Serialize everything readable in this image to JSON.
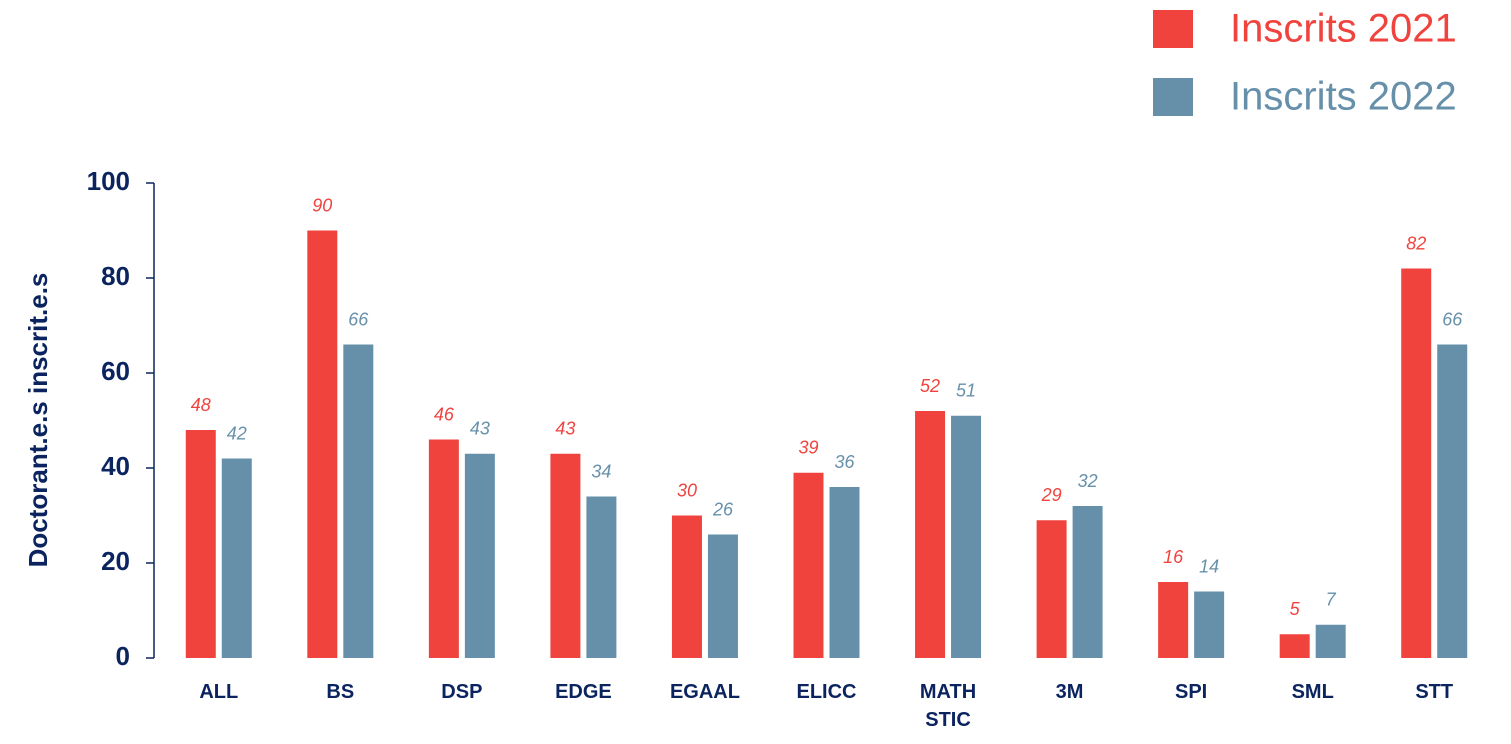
{
  "chart_data": {
    "type": "bar",
    "ylabel": "Doctorant.e.s inscrit.e.s",
    "categories": [
      "ALL",
      "BS",
      "DSP",
      "EDGE",
      "EGAAL",
      "ELICC",
      "MATH STIC",
      "3M",
      "SPI",
      "SML",
      "STT"
    ],
    "series": [
      {
        "name": "Inscrits 2021",
        "color": "#f0433e",
        "values": [
          48,
          90,
          46,
          43,
          30,
          39,
          52,
          29,
          16,
          5,
          82
        ]
      },
      {
        "name": "Inscrits 2022",
        "color": "#6690aa",
        "values": [
          42,
          66,
          43,
          34,
          26,
          36,
          51,
          32,
          14,
          7,
          66
        ]
      }
    ],
    "ylim": [
      0,
      100
    ],
    "yticks": [
      0,
      20,
      40,
      60,
      80,
      100
    ],
    "legend": "top-right"
  }
}
